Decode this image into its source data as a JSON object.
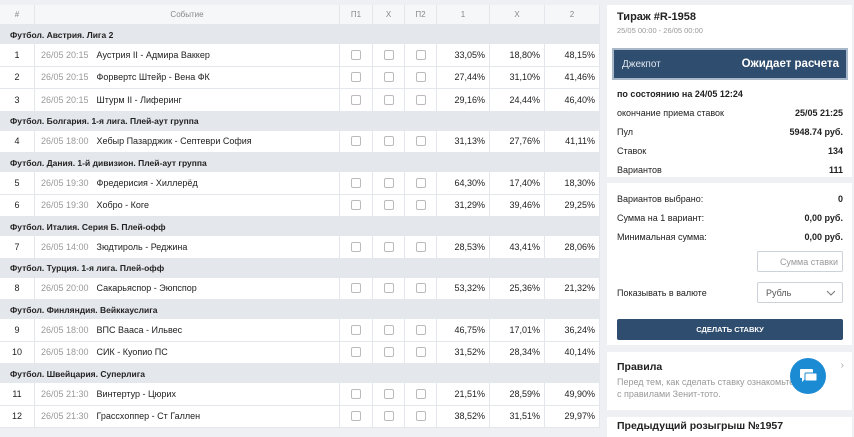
{
  "table": {
    "columns": [
      "#",
      "Событие",
      "П1",
      "Х",
      "П2",
      "1",
      "Х",
      "2"
    ],
    "groups": [
      {
        "name": "Футбол. Австрия. Лига 2",
        "matches": [
          {
            "num": "1",
            "date": "26/05 20:15",
            "event": "Аустрия II - Адмира Ваккер",
            "p1": "33,05%",
            "x": "18,80%",
            "p2": "48,15%"
          },
          {
            "num": "2",
            "date": "26/05 20:15",
            "event": "Форвертс Штейр - Вена ФК",
            "p1": "27,44%",
            "x": "31,10%",
            "p2": "41,46%"
          },
          {
            "num": "3",
            "date": "26/05 20:15",
            "event": "Штурм II - Лиферинг",
            "p1": "29,16%",
            "x": "24,44%",
            "p2": "46,40%"
          }
        ]
      },
      {
        "name": "Футбол. Болгария. 1-я лига. Плей-аут группа",
        "matches": [
          {
            "num": "4",
            "date": "26/05 18:00",
            "event": "Хебыр Пазарджик - Септеври София",
            "p1": "31,13%",
            "x": "27,76%",
            "p2": "41,11%"
          }
        ]
      },
      {
        "name": "Футбол. Дания. 1-й дивизион. Плей-аут группа",
        "matches": [
          {
            "num": "5",
            "date": "26/05 19:30",
            "event": "Фредерисия - Хиллерёд",
            "p1": "64,30%",
            "x": "17,40%",
            "p2": "18,30%"
          },
          {
            "num": "6",
            "date": "26/05 19:30",
            "event": "Хобро - Коге",
            "p1": "31,29%",
            "x": "39,46%",
            "p2": "29,25%"
          }
        ]
      },
      {
        "name": "Футбол. Италия. Серия Б. Плей-офф",
        "matches": [
          {
            "num": "7",
            "date": "26/05 14:00",
            "event": "Зюдтироль - Реджина",
            "p1": "28,53%",
            "x": "43,41%",
            "p2": "28,06%"
          }
        ]
      },
      {
        "name": "Футбол. Турция. 1-я лига. Плей-офф",
        "matches": [
          {
            "num": "8",
            "date": "26/05 20:00",
            "event": "Сакарьяспор - Эюпспор",
            "p1": "53,32%",
            "x": "25,36%",
            "p2": "21,32%"
          }
        ]
      },
      {
        "name": "Футбол. Финляндия. Вейккауслига",
        "matches": [
          {
            "num": "9",
            "date": "26/05 18:00",
            "event": "ВПС Вааса - Ильвес",
            "p1": "46,75%",
            "x": "17,01%",
            "p2": "36,24%"
          },
          {
            "num": "10",
            "date": "26/05 18:00",
            "event": "СИК - Куопио ПС",
            "p1": "31,52%",
            "x": "28,34%",
            "p2": "40,14%"
          }
        ]
      },
      {
        "name": "Футбол. Швейцария. Суперлига",
        "matches": [
          {
            "num": "11",
            "date": "26/05 21:30",
            "event": "Винтертур - Цюрих",
            "p1": "21,51%",
            "x": "28,59%",
            "p2": "49,90%"
          },
          {
            "num": "12",
            "date": "26/05 21:30",
            "event": "Грассхоппер - Ст Галлен",
            "p1": "38,52%",
            "x": "31,51%",
            "p2": "29,97%"
          }
        ]
      }
    ]
  },
  "panel": {
    "title": "Тираж #R-1958",
    "period": "25/05 00:00 - 26/05 00:00",
    "jackpot_label": "Джекпот",
    "jackpot_status": "Ожидает расчета",
    "as_of": "по состоянию на 24/05 12:24",
    "info": [
      {
        "label": "окончание приема ставок",
        "value": "25/05 21:25"
      },
      {
        "label": "Пул",
        "value": "5948.74 руб."
      },
      {
        "label": "Ставок",
        "value": "134"
      },
      {
        "label": "Вариантов",
        "value": "111"
      }
    ],
    "selection": [
      {
        "label": "Вариантов выбрано:",
        "value": "0"
      },
      {
        "label": "Сумма на 1 вариант:",
        "value": "0,00 руб."
      },
      {
        "label": "Минимальная сумма:",
        "value": "0,00 руб."
      }
    ],
    "stake_placeholder": "Сумма ставки",
    "currency_label": "Показывать в валюте",
    "currency": "Рубль",
    "button": "СДЕЛАТЬ СТАВКУ",
    "rules_title": "Правила",
    "rules_text": "Перед тем, как сделать ставку ознакомьтесь с правилами Зенит-тото.",
    "prev_title": "Предыдущий розыгрыш №1957"
  }
}
